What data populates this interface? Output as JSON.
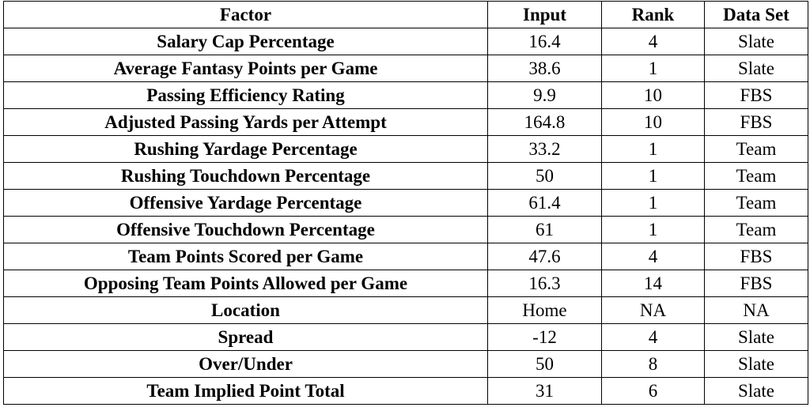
{
  "table": {
    "headers": {
      "factor": "Factor",
      "input": "Input",
      "rank": "Rank",
      "data_set": "Data Set"
    },
    "rows": [
      {
        "factor": "Salary Cap Percentage",
        "input": "16.4",
        "rank": "4",
        "data_set": "Slate"
      },
      {
        "factor": "Average Fantasy Points per Game",
        "input": "38.6",
        "rank": "1",
        "data_set": "Slate"
      },
      {
        "factor": "Passing Efficiency Rating",
        "input": "9.9",
        "rank": "10",
        "data_set": "FBS"
      },
      {
        "factor": "Adjusted Passing Yards per Attempt",
        "input": "164.8",
        "rank": "10",
        "data_set": "FBS"
      },
      {
        "factor": "Rushing Yardage Percentage",
        "input": "33.2",
        "rank": "1",
        "data_set": "Team"
      },
      {
        "factor": "Rushing Touchdown Percentage",
        "input": "50",
        "rank": "1",
        "data_set": "Team"
      },
      {
        "factor": "Offensive Yardage Percentage",
        "input": "61.4",
        "rank": "1",
        "data_set": "Team"
      },
      {
        "factor": "Offensive Touchdown Percentage",
        "input": "61",
        "rank": "1",
        "data_set": "Team"
      },
      {
        "factor": "Team Points Scored per Game",
        "input": "47.6",
        "rank": "4",
        "data_set": "FBS"
      },
      {
        "factor": "Opposing Team Points Allowed per Game",
        "input": "16.3",
        "rank": "14",
        "data_set": "FBS"
      },
      {
        "factor": "Location",
        "input": "Home",
        "rank": "NA",
        "data_set": "NA"
      },
      {
        "factor": "Spread",
        "input": "-12",
        "rank": "4",
        "data_set": "Slate"
      },
      {
        "factor": "Over/Under",
        "input": "50",
        "rank": "8",
        "data_set": "Slate"
      },
      {
        "factor": "Team Implied Point Total",
        "input": "31",
        "rank": "6",
        "data_set": "Slate"
      }
    ]
  }
}
